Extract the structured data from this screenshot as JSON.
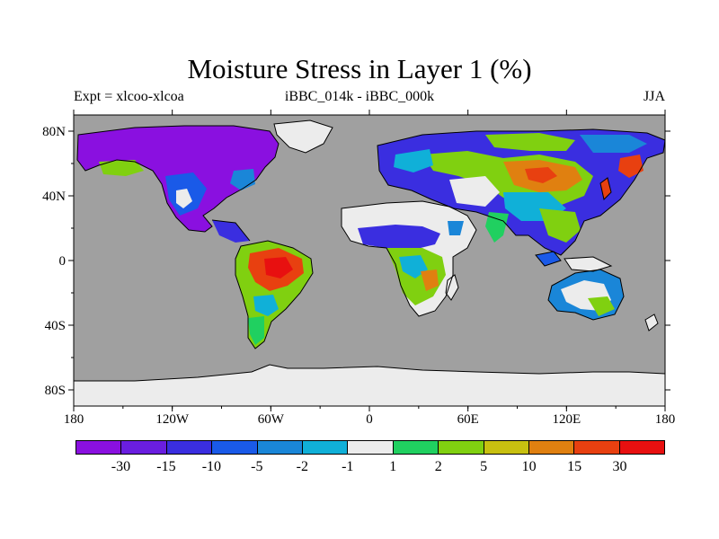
{
  "title": "Moisture Stress in Layer 1 (%)",
  "subtitle_left": "Expt = xlcoo-xlcoa",
  "subtitle_center": "iBBC_014k - iBBC_000k",
  "subtitle_right": "JJA",
  "axes": {
    "lat_labels": [
      "80N",
      "40N",
      "0",
      "40S",
      "80S"
    ],
    "lat_values": [
      80,
      40,
      0,
      -40,
      -80
    ],
    "lon_labels": [
      "180",
      "120W",
      "60W",
      "0",
      "60E",
      "120E",
      "180"
    ],
    "lon_values": [
      -180,
      -120,
      -60,
      0,
      60,
      120,
      180
    ],
    "lon_range": [
      -180,
      180
    ],
    "lat_range": [
      -90,
      90
    ]
  },
  "colors": {
    "ocean": "#a0a0a0",
    "coast": "#000000"
  },
  "colorbar": {
    "colors": [
      "#8a10e0",
      "#6a1ee0",
      "#3a2ee0",
      "#1a5ae8",
      "#1a86d8",
      "#10b0d8",
      "#ececec",
      "#20d060",
      "#80d010",
      "#c8c010",
      "#e08010",
      "#e84010",
      "#e81010"
    ],
    "labels": [
      "-30",
      "-15",
      "-10",
      "-5",
      "-2",
      "-1",
      "1",
      "2",
      "5",
      "10",
      "15",
      "30"
    ]
  }
}
